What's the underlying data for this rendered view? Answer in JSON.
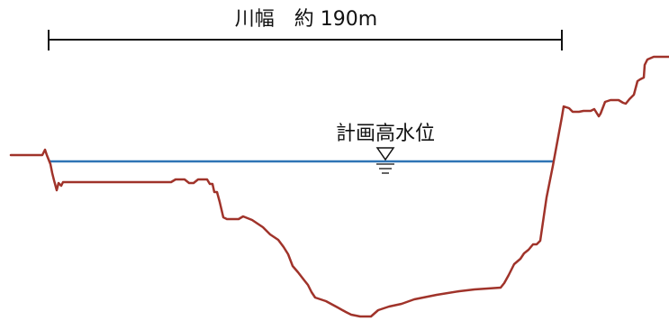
{
  "diagram": {
    "width_label": "川幅　約 190m",
    "water_level_label": "計画高水位"
  },
  "colors": {
    "riverbed": "#a0332a",
    "water_line": "#2f74b5",
    "dimension_line": "#111111",
    "background": "#ffffff"
  },
  "icons": {
    "water_level_marker": "triangle-down-with-ticks"
  }
}
